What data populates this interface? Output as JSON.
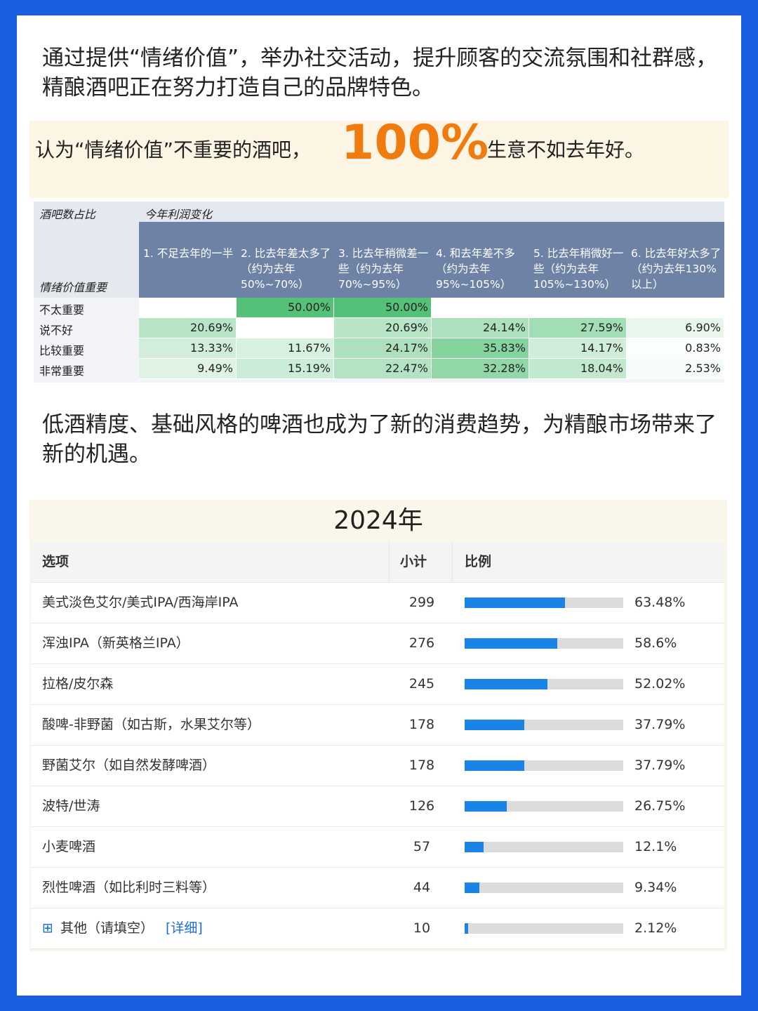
{
  "intro": "通过提供“情绪价值”，举办社交活动，提升顾客的交流氛围和社群感，精酿酒吧正在努力打造自己的品牌特色。",
  "highlight": {
    "before": "认为“情绪价值”不重要的酒吧，",
    "emphasis": "100%",
    "after": "生意不如去年好。"
  },
  "profit_table": {
    "corner_top": "酒吧数占比",
    "corner_bottom": "情绪价值重要",
    "group_header": "今年利润变化",
    "columns": [
      "1. 不足去年的一半",
      "2. 比去年差太多了（约为去年50%~70%）",
      "3. 比去年稍微差一些（约为去年70%~95%）",
      "4. 和去年差不多（约为去年95%~105%）",
      "5. 比去年稍微好一些（约为去年105%~130%）",
      "6. 比去年好太多了（约为去年130%以上）"
    ],
    "rows": [
      {
        "label": "不太重要",
        "cells": [
          null,
          "50.00%",
          "50.00%",
          null,
          null,
          null
        ]
      },
      {
        "label": "说不好",
        "cells": [
          "20.69%",
          null,
          "20.69%",
          "24.14%",
          "27.59%",
          "6.90%"
        ]
      },
      {
        "label": "比较重要",
        "cells": [
          "13.33%",
          "11.67%",
          "24.17%",
          "35.83%",
          "14.17%",
          "0.83%"
        ]
      },
      {
        "label": "非常重要",
        "cells": [
          "9.49%",
          "15.19%",
          "22.47%",
          "32.28%",
          "18.04%",
          "2.53%"
        ]
      }
    ]
  },
  "trend": "低酒精度、基础风格的啤酒也成为了新的消费趋势，为精酿市场带来了新的机遇。",
  "survey": {
    "title": "2024年",
    "headers": [
      "选项",
      "小计",
      "比例"
    ],
    "rows": [
      {
        "option": "美式淡色艾尔/美式IPA/西海岸IPA",
        "count": 299,
        "ratio": 63.48,
        "ratio_label": "63.48%"
      },
      {
        "option": "浑浊IPA（新英格兰IPA）",
        "count": 276,
        "ratio": 58.6,
        "ratio_label": "58.6%"
      },
      {
        "option": "拉格/皮尔森",
        "count": 245,
        "ratio": 52.02,
        "ratio_label": "52.02%"
      },
      {
        "option": "酸啤-非野菌（如古斯，水果艾尔等）",
        "count": 178,
        "ratio": 37.79,
        "ratio_label": "37.79%"
      },
      {
        "option": "野菌艾尔（如自然发酵啤酒）",
        "count": 178,
        "ratio": 37.79,
        "ratio_label": "37.79%"
      },
      {
        "option": "波特/世涛",
        "count": 126,
        "ratio": 26.75,
        "ratio_label": "26.75%"
      },
      {
        "option": "小麦啤酒",
        "count": 57,
        "ratio": 12.1,
        "ratio_label": "12.1%"
      },
      {
        "option": "烈性啤酒（如比利时三料等）",
        "count": 44,
        "ratio": 9.34,
        "ratio_label": "9.34%"
      },
      {
        "option": "其他（请填空）",
        "detail": "[详细]",
        "count": 10,
        "ratio": 2.12,
        "ratio_label": "2.12%"
      }
    ]
  }
}
